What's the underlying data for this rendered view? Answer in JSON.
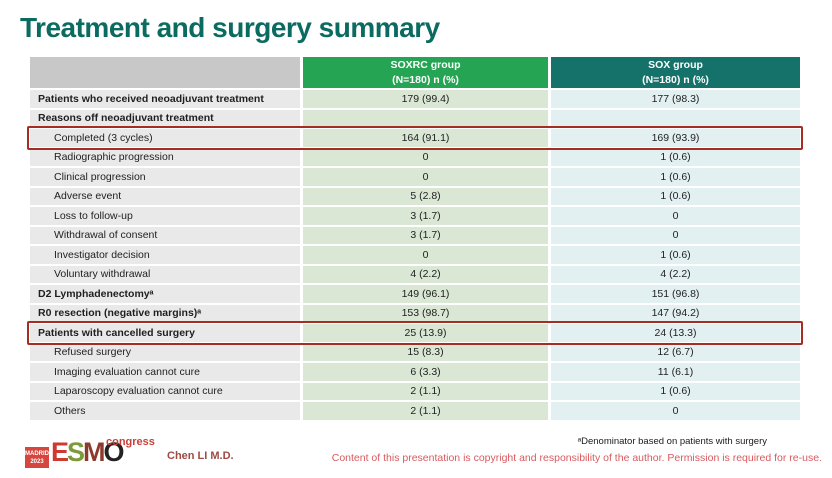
{
  "slide": {
    "title": "Treatment and surgery summary",
    "table": {
      "header": {
        "col1": "",
        "col2_line1": "SOXRC group",
        "col2_line2": "(N=180)  n (%)",
        "col3_line1": "SOX group",
        "col3_line2": "(N=180)  n (%)"
      },
      "rows": [
        {
          "label": "Patients who received neoadjuvant treatment",
          "soxrc": "179 (99.4)",
          "sox": "177 (98.3)"
        },
        {
          "label": "Reasons off neoadjuvant treatment",
          "soxrc": "",
          "sox": ""
        },
        {
          "label": "Completed (3 cycles)",
          "soxrc": "164 (91.1)",
          "sox": "169 (93.9)"
        },
        {
          "label": "Radiographic progression",
          "soxrc": "0",
          "sox": "1 (0.6)"
        },
        {
          "label": "Clinical progression",
          "soxrc": "0",
          "sox": "1 (0.6)"
        },
        {
          "label": "Adverse event",
          "soxrc": "5 (2.8)",
          "sox": "1 (0.6)"
        },
        {
          "label": "Loss to follow-up",
          "soxrc": "3 (1.7)",
          "sox": "0"
        },
        {
          "label": "Withdrawal of consent",
          "soxrc": "3 (1.7)",
          "sox": "0"
        },
        {
          "label": "Investigator decision",
          "soxrc": "0",
          "sox": "1 (0.6)"
        },
        {
          "label": "Voluntary withdrawal",
          "soxrc": "4 (2.2)",
          "sox": "4 (2.2)"
        },
        {
          "label": "D2 Lymphadenectomyᵃ",
          "soxrc": "149 (96.1)",
          "sox": "151 (96.8)"
        },
        {
          "label": "R0 resection (negative margins)ᵃ",
          "soxrc": "153 (98.7)",
          "sox": "147 (94.2)"
        },
        {
          "label": "Patients with cancelled surgery",
          "soxrc": "25 (13.9)",
          "sox": "24 (13.3)"
        },
        {
          "label": "Refused surgery",
          "soxrc": "15 (8.3)",
          "sox": "12 (6.7)"
        },
        {
          "label": "Imaging evaluation cannot cure",
          "soxrc": "6 (3.3)",
          "sox": "11 (6.1)"
        },
        {
          "label": "Laparoscopy evaluation cannot cure",
          "soxrc": "2 (1.1)",
          "sox": "1 (0.6)"
        },
        {
          "label": "Others",
          "soxrc": "2 (1.1)",
          "sox": "0"
        }
      ]
    },
    "footer": {
      "esmo_logo": {
        "madrid": "MADRID",
        "year": "2023",
        "letters": {
          "e": "E",
          "s": "S",
          "m": "M",
          "o": "O"
        },
        "congress": "congress"
      },
      "author": "Chen LI M.D.",
      "footnote": "ᵃDenominator based on patients with surgery",
      "copyright": "Content of this presentation is copyright and responsibility of the author. Permission is required for re-use."
    },
    "colors": {
      "title": "#0c6b60",
      "header_soxrc_bg": "#25a553",
      "header_sox_bg": "#15726a",
      "header_label_bg": "#c8c8c8",
      "label_cell_bg": "#e9e9e9",
      "soxrc_cell_bg": "#d9e7d4",
      "sox_cell_bg": "#e3f0f1",
      "highlight_border": "#a42d24",
      "copyright_text": "#d95a5e"
    }
  }
}
